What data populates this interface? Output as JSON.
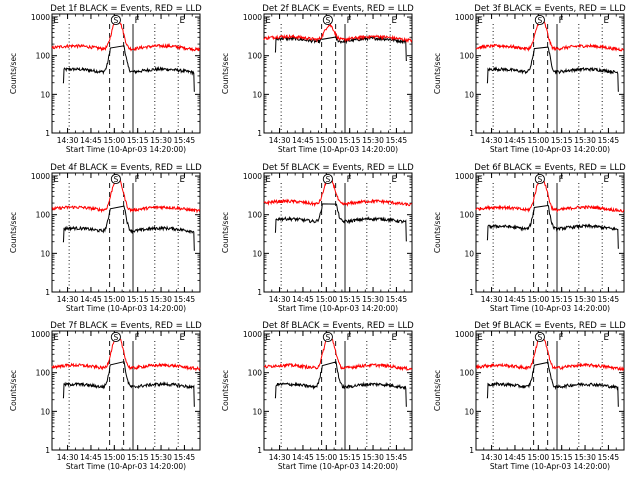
{
  "figure": {
    "ylabel": "Counts/sec",
    "xlabel": "Start Time (10-Apr-03 14:20:00)",
    "x_tick_labels": [
      "14:30",
      "14:45",
      "15:00",
      "15:15",
      "15:30",
      "15:45"
    ],
    "y_tick_labels": [
      "1",
      "10",
      "100",
      "1000"
    ],
    "marker_labels": [
      "E",
      "S",
      "F",
      "E"
    ],
    "colors": {
      "events": "#000000",
      "lld": "#ff0000"
    }
  },
  "chart_data": [
    {
      "type": "line",
      "title": "Det 1f BLACK = Events, RED = LLD",
      "xlabel": "Start Time (10-Apr-03 14:20:00)",
      "ylabel": "Counts/sec",
      "ylim": [
        1,
        1200
      ],
      "xlim": [
        "14:20",
        "15:55"
      ],
      "flare_peak": "15:02",
      "series": [
        {
          "name": "Events",
          "color": "black",
          "baseline": 40,
          "peak": 650
        },
        {
          "name": "LLD",
          "color": "red",
          "baseline": 160,
          "peak": 1000
        }
      ],
      "markers": [
        {
          "label": "E",
          "time": "14:20"
        },
        {
          "label": "S",
          "time": "15:01"
        },
        {
          "label": "F",
          "time": "15:12"
        },
        {
          "label": "E",
          "time": "15:41"
        }
      ]
    },
    {
      "type": "line",
      "title": "Det 2f BLACK = Events, RED = LLD",
      "xlabel": "Start Time (10-Apr-03 14:20:00)",
      "ylabel": "Counts/sec",
      "ylim": [
        1,
        1200
      ],
      "xlim": [
        "14:20",
        "15:55"
      ],
      "flare_peak": "15:02",
      "series": [
        {
          "name": "Events",
          "color": "black",
          "baseline": 250,
          "peak": 500
        },
        {
          "name": "LLD",
          "color": "red",
          "baseline": 280,
          "peak": 700
        }
      ],
      "markers": [
        {
          "label": "E",
          "time": "14:20"
        },
        {
          "label": "S",
          "time": "15:01"
        },
        {
          "label": "F",
          "time": "15:12"
        },
        {
          "label": "E",
          "time": "15:41"
        }
      ]
    },
    {
      "type": "line",
      "title": "Det 3f BLACK = Events, RED = LLD",
      "xlabel": "Start Time (10-Apr-03 14:20:00)",
      "ylabel": "Counts/sec",
      "ylim": [
        1,
        1200
      ],
      "xlim": [
        "14:20",
        "15:55"
      ],
      "flare_peak": "15:02",
      "series": [
        {
          "name": "Events",
          "color": "black",
          "baseline": 40,
          "peak": 650
        },
        {
          "name": "LLD",
          "color": "red",
          "baseline": 160,
          "peak": 1000
        }
      ],
      "markers": [
        {
          "label": "E",
          "time": "14:20"
        },
        {
          "label": "S",
          "time": "15:01"
        },
        {
          "label": "F",
          "time": "15:12"
        },
        {
          "label": "E",
          "time": "15:41"
        }
      ]
    },
    {
      "type": "line",
      "title": "Det 4f BLACK = Events, RED = LLD",
      "xlabel": "Start Time (10-Apr-03 14:20:00)",
      "ylabel": "Counts/sec",
      "ylim": [
        1,
        1200
      ],
      "xlim": [
        "14:20",
        "15:55"
      ],
      "flare_peak": "15:02",
      "series": [
        {
          "name": "Events",
          "color": "black",
          "baseline": 40,
          "peak": 650
        },
        {
          "name": "LLD",
          "color": "red",
          "baseline": 140,
          "peak": 1000
        }
      ],
      "markers": [
        {
          "label": "E",
          "time": "14:20"
        },
        {
          "label": "S",
          "time": "15:01"
        },
        {
          "label": "F",
          "time": "15:12"
        },
        {
          "label": "E",
          "time": "15:41"
        }
      ]
    },
    {
      "type": "line",
      "title": "Det 5f BLACK = Events, RED = LLD",
      "xlabel": "Start Time (10-Apr-03 14:20:00)",
      "ylabel": "Counts/sec",
      "ylim": [
        1,
        1200
      ],
      "xlim": [
        "14:20",
        "15:55"
      ],
      "flare_peak": "15:02",
      "series": [
        {
          "name": "Events",
          "color": "black",
          "baseline": 70,
          "peak": 650
        },
        {
          "name": "LLD",
          "color": "red",
          "baseline": 200,
          "peak": 1000
        }
      ],
      "markers": [
        {
          "label": "E",
          "time": "14:20"
        },
        {
          "label": "S",
          "time": "15:01"
        },
        {
          "label": "F",
          "time": "15:12"
        },
        {
          "label": "E",
          "time": "15:41"
        }
      ]
    },
    {
      "type": "line",
      "title": "Det 6f BLACK = Events, RED = LLD",
      "xlabel": "Start Time (10-Apr-03 14:20:00)",
      "ylabel": "Counts/sec",
      "ylim": [
        1,
        1200
      ],
      "xlim": [
        "14:20",
        "15:55"
      ],
      "flare_peak": "15:02",
      "series": [
        {
          "name": "Events",
          "color": "black",
          "baseline": 45,
          "peak": 650
        },
        {
          "name": "LLD",
          "color": "red",
          "baseline": 140,
          "peak": 1000
        }
      ],
      "markers": [
        {
          "label": "E",
          "time": "14:20"
        },
        {
          "label": "S",
          "time": "15:01"
        },
        {
          "label": "F",
          "time": "15:12"
        },
        {
          "label": "E",
          "time": "15:41"
        }
      ]
    },
    {
      "type": "line",
      "title": "Det 7f BLACK = Events, RED = LLD",
      "xlabel": "Start Time (10-Apr-03 14:20:00)",
      "ylabel": "Counts/sec",
      "ylim": [
        1,
        1200
      ],
      "xlim": [
        "14:20",
        "15:55"
      ],
      "flare_peak": "15:02",
      "series": [
        {
          "name": "Events",
          "color": "black",
          "baseline": 45,
          "peak": 650
        },
        {
          "name": "LLD",
          "color": "red",
          "baseline": 140,
          "peak": 1000
        }
      ],
      "markers": [
        {
          "label": "E",
          "time": "14:20"
        },
        {
          "label": "S",
          "time": "15:01"
        },
        {
          "label": "F",
          "time": "15:12"
        },
        {
          "label": "E",
          "time": "15:41"
        }
      ]
    },
    {
      "type": "line",
      "title": "Det 8f BLACK = Events, RED = LLD",
      "xlabel": "Start Time (10-Apr-03 14:20:00)",
      "ylabel": "Counts/sec",
      "ylim": [
        1,
        1200
      ],
      "xlim": [
        "14:20",
        "15:55"
      ],
      "flare_peak": "15:02",
      "series": [
        {
          "name": "Events",
          "color": "black",
          "baseline": 45,
          "peak": 650
        },
        {
          "name": "LLD",
          "color": "red",
          "baseline": 140,
          "peak": 1000
        }
      ],
      "markers": [
        {
          "label": "E",
          "time": "14:20"
        },
        {
          "label": "S",
          "time": "15:01"
        },
        {
          "label": "F",
          "time": "15:12"
        },
        {
          "label": "E",
          "time": "15:41"
        }
      ]
    },
    {
      "type": "line",
      "title": "Det 9f BLACK = Events, RED = LLD",
      "xlabel": "Start Time (10-Apr-03 14:20:00)",
      "ylabel": "Counts/sec",
      "ylim": [
        1,
        1200
      ],
      "xlim": [
        "14:20",
        "15:55"
      ],
      "flare_peak": "15:02",
      "series": [
        {
          "name": "Events",
          "color": "black",
          "baseline": 45,
          "peak": 650
        },
        {
          "name": "LLD",
          "color": "red",
          "baseline": 140,
          "peak": 1000
        }
      ],
      "markers": [
        {
          "label": "E",
          "time": "14:20"
        },
        {
          "label": "S",
          "time": "15:01"
        },
        {
          "label": "F",
          "time": "15:12"
        },
        {
          "label": "E",
          "time": "15:41"
        }
      ]
    }
  ]
}
